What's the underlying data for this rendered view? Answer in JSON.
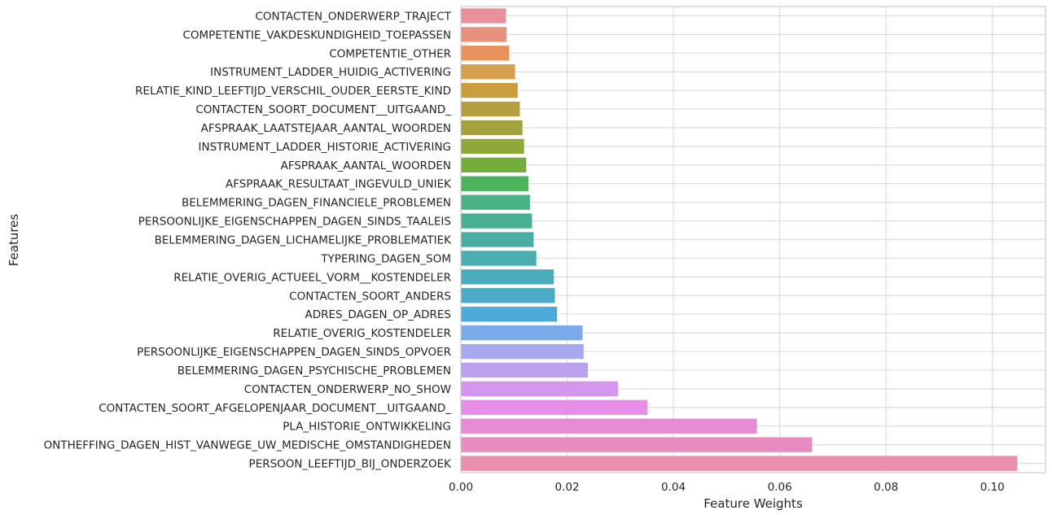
{
  "chart_data": {
    "type": "bar",
    "orientation": "horizontal",
    "title": "",
    "xlabel": "Feature Weights",
    "ylabel": "Features",
    "xlim": [
      0,
      0.11
    ],
    "xticks": [
      0.0,
      0.02,
      0.04,
      0.06,
      0.08,
      0.1
    ],
    "xtick_labels": [
      "0.00",
      "0.02",
      "0.04",
      "0.06",
      "0.08",
      "0.10"
    ],
    "grid": true,
    "categories": [
      "CONTACTEN_ONDERWERP_TRAJECT",
      "COMPETENTIE_VAKDESKUNDIGHEID_TOEPASSEN",
      "COMPETENTIE_OTHER",
      "INSTRUMENT_LADDER_HUIDIG_ACTIVERING",
      "RELATIE_KIND_LEEFTIJD_VERSCHIL_OUDER_EERSTE_KIND",
      "CONTACTEN_SOORT_DOCUMENT__UITGAAND_",
      "AFSPRAAK_LAATSTEJAAR_AANTAL_WOORDEN",
      "INSTRUMENT_LADDER_HISTORIE_ACTIVERING",
      "AFSPRAAK_AANTAL_WOORDEN",
      "AFSPRAAK_RESULTAAT_INGEVULD_UNIEK",
      "BELEMMERING_DAGEN_FINANCIELE_PROBLEMEN",
      "PERSOONLIJKE_EIGENSCHAPPEN_DAGEN_SINDS_TAALEIS",
      "BELEMMERING_DAGEN_LICHAMELIJKE_PROBLEMATIEK",
      "TYPERING_DAGEN_SOM",
      "RELATIE_OVERIG_ACTUEEL_VORM__KOSTENDELER",
      "CONTACTEN_SOORT_ANDERS",
      "ADRES_DAGEN_OP_ADRES",
      "RELATIE_OVERIG_KOSTENDELER",
      "PERSOONLIJKE_EIGENSCHAPPEN_DAGEN_SINDS_OPVOER",
      "BELEMMERING_DAGEN_PSYCHISCHE_PROBLEMEN",
      "CONTACTEN_ONDERWERP_NO_SHOW",
      "CONTACTEN_SOORT_AFGELOPENJAAR_DOCUMENT__UITGAAND_",
      "PLA_HISTORIE_ONTWIKKELING",
      "ONTHEFFING_DAGEN_HIST_VANWEGE_UW_MEDISCHE_OMSTANDIGHEDEN",
      "PERSOON_LEEFTIJD_BIJ_ONDERZOEK"
    ],
    "values": [
      0.0085,
      0.0086,
      0.0091,
      0.0102,
      0.0107,
      0.0111,
      0.0116,
      0.0119,
      0.0123,
      0.0127,
      0.013,
      0.0134,
      0.0137,
      0.0142,
      0.0175,
      0.0177,
      0.0181,
      0.0229,
      0.0231,
      0.0239,
      0.0296,
      0.0351,
      0.0557,
      0.0661,
      0.1047
    ],
    "colors": [
      "#e8919a",
      "#e8917e",
      "#e8925c",
      "#d49e4c",
      "#c89d3d",
      "#b4a040",
      "#a3a23c",
      "#8fa83c",
      "#75ad3c",
      "#4bb35a",
      "#49b184",
      "#4ab094",
      "#4baea4",
      "#4aadaf",
      "#4aacbb",
      "#4babc8",
      "#4eaadb",
      "#7aaaea",
      "#a7a8ef",
      "#b9a1ee",
      "#d597ee",
      "#e98ee6",
      "#e68bd3",
      "#e78cbf",
      "#e98eac"
    ]
  }
}
